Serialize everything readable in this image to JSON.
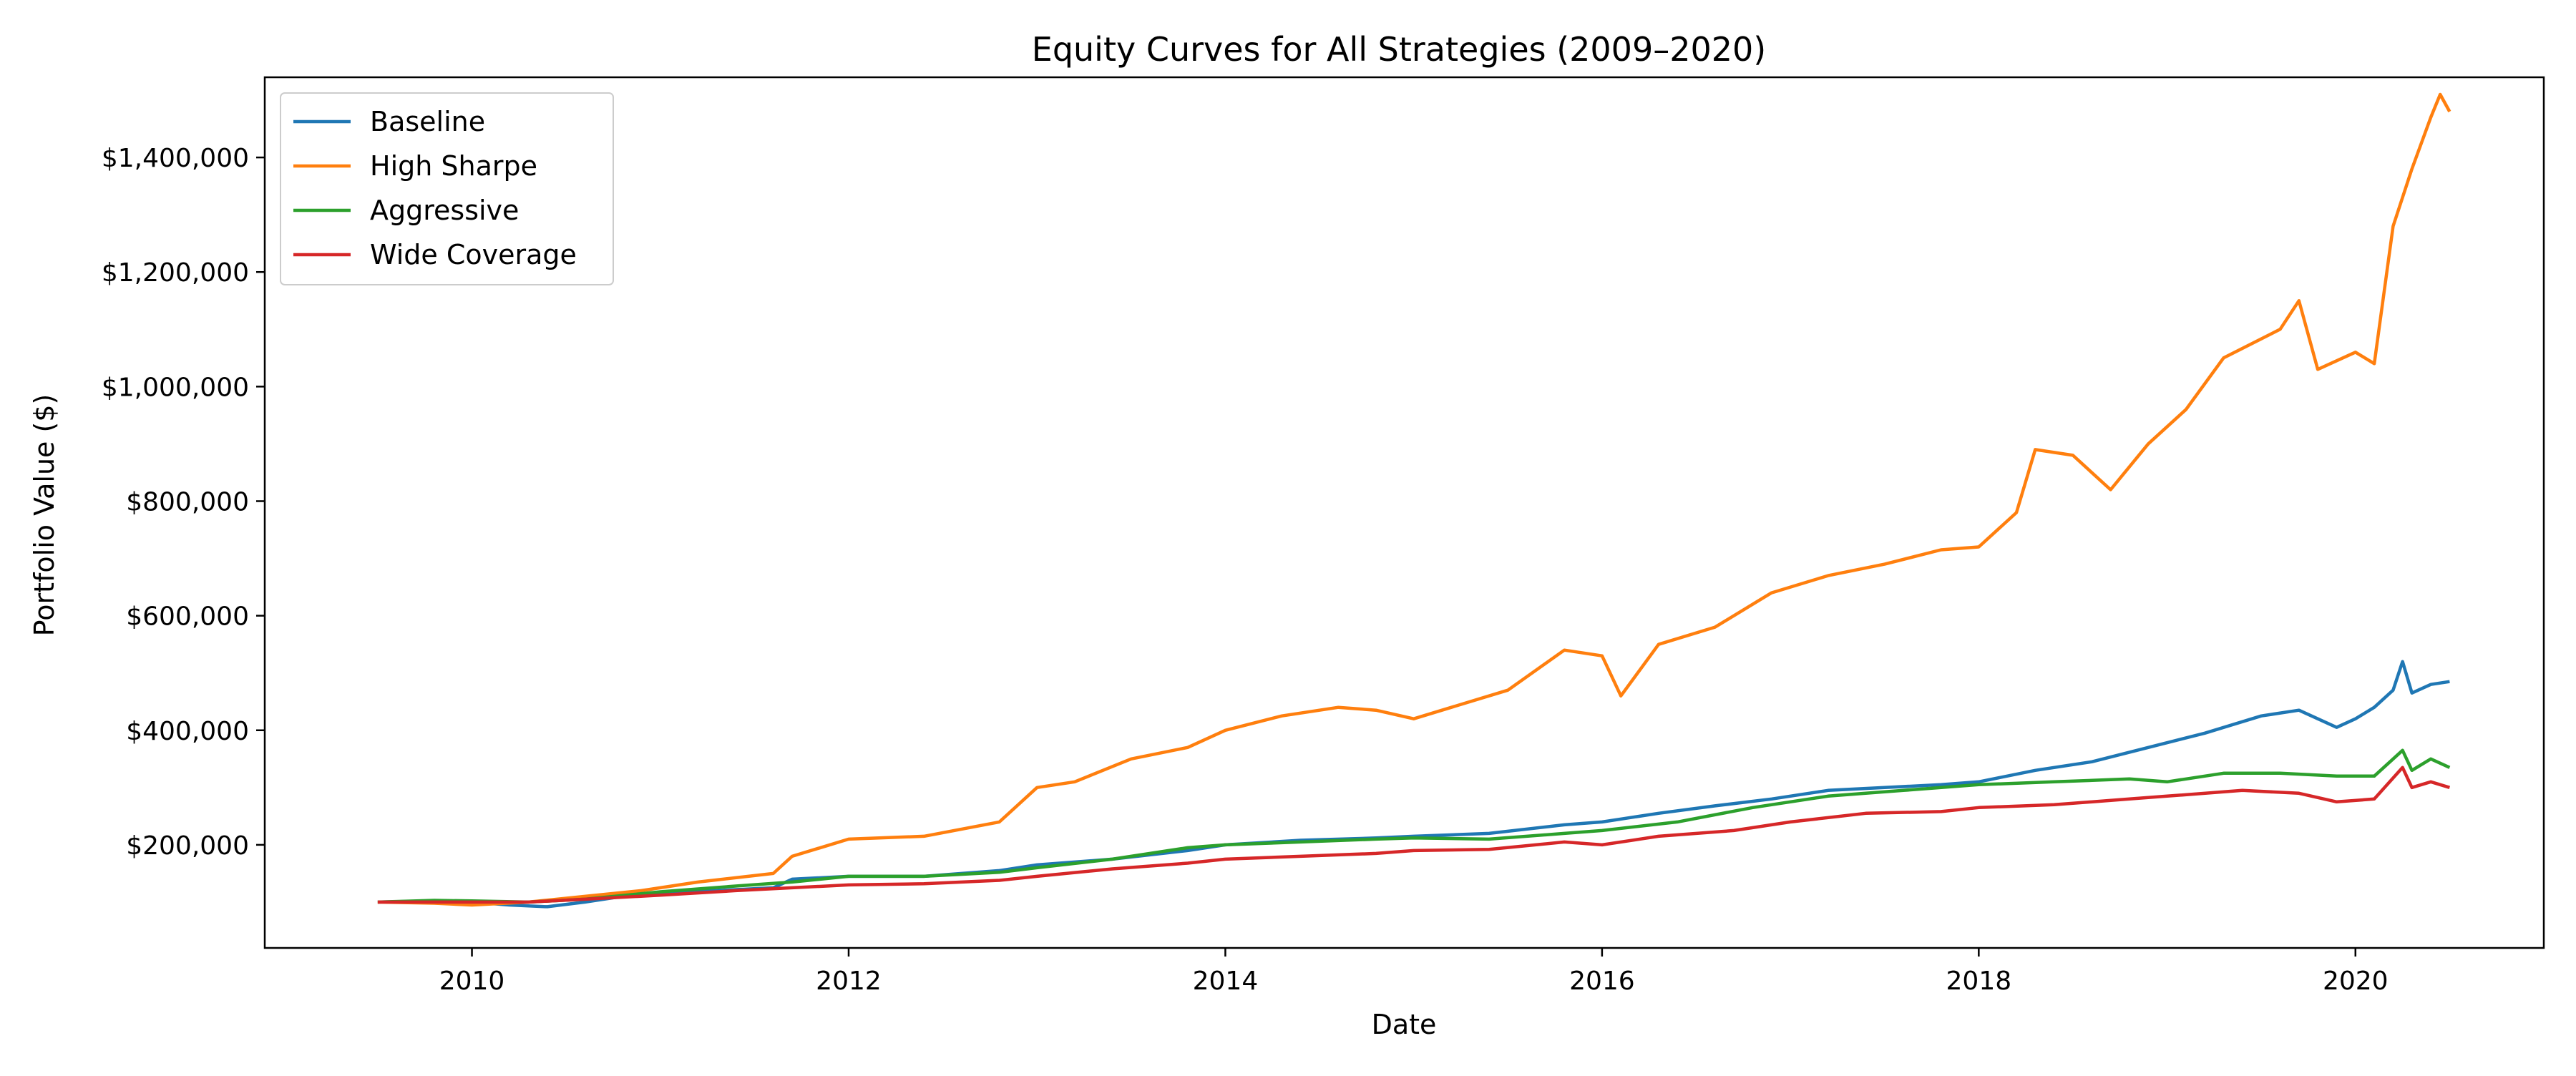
{
  "chart_data": {
    "type": "line",
    "title": "Equity Curves for All Strategies (2009–2020)",
    "xlabel": "Date",
    "ylabel": "Portfolio Value ($)",
    "xlim": [
      2008.9,
      2021.0
    ],
    "ylim": [
      20000,
      1540000
    ],
    "x_ticks": [
      2010,
      2012,
      2014,
      2016,
      2018,
      2020
    ],
    "x_tick_labels": [
      "2010",
      "2012",
      "2014",
      "2016",
      "2018",
      "2020"
    ],
    "y_ticks": [
      200000,
      400000,
      600000,
      800000,
      1000000,
      1200000,
      1400000
    ],
    "y_tick_labels": [
      "$200,000",
      "$400,000",
      "$600,000",
      "$800,000",
      "$1,000,000",
      "$1,200,000",
      "$1,400,000"
    ],
    "grid": false,
    "legend_position": "top-left",
    "series": [
      {
        "name": "Baseline",
        "color": "#1f77b4",
        "points": [
          [
            2009.5,
            100000
          ],
          [
            2009.8,
            102000
          ],
          [
            2010.0,
            100000
          ],
          [
            2010.2,
            95000
          ],
          [
            2010.4,
            92000
          ],
          [
            2010.6,
            100000
          ],
          [
            2010.8,
            110000
          ],
          [
            2011.0,
            115000
          ],
          [
            2011.3,
            120000
          ],
          [
            2011.6,
            125000
          ],
          [
            2011.7,
            140000
          ],
          [
            2012.0,
            145000
          ],
          [
            2012.4,
            145000
          ],
          [
            2012.8,
            155000
          ],
          [
            2013.0,
            165000
          ],
          [
            2013.4,
            175000
          ],
          [
            2013.8,
            190000
          ],
          [
            2014.0,
            200000
          ],
          [
            2014.4,
            208000
          ],
          [
            2014.8,
            212000
          ],
          [
            2015.0,
            215000
          ],
          [
            2015.4,
            220000
          ],
          [
            2015.8,
            235000
          ],
          [
            2016.0,
            240000
          ],
          [
            2016.3,
            255000
          ],
          [
            2016.6,
            268000
          ],
          [
            2016.9,
            280000
          ],
          [
            2017.2,
            295000
          ],
          [
            2017.5,
            300000
          ],
          [
            2017.8,
            305000
          ],
          [
            2018.0,
            310000
          ],
          [
            2018.3,
            330000
          ],
          [
            2018.6,
            345000
          ],
          [
            2018.9,
            370000
          ],
          [
            2019.2,
            395000
          ],
          [
            2019.5,
            425000
          ],
          [
            2019.7,
            435000
          ],
          [
            2019.9,
            405000
          ],
          [
            2020.0,
            420000
          ],
          [
            2020.1,
            440000
          ],
          [
            2020.2,
            470000
          ],
          [
            2020.25,
            520000
          ],
          [
            2020.3,
            465000
          ],
          [
            2020.4,
            480000
          ],
          [
            2020.5,
            485000
          ]
        ]
      },
      {
        "name": "High Sharpe",
        "color": "#ff7f0e",
        "points": [
          [
            2009.5,
            100000
          ],
          [
            2009.8,
            98000
          ],
          [
            2010.0,
            95000
          ],
          [
            2010.3,
            100000
          ],
          [
            2010.6,
            110000
          ],
          [
            2010.9,
            120000
          ],
          [
            2011.2,
            135000
          ],
          [
            2011.6,
            150000
          ],
          [
            2011.7,
            180000
          ],
          [
            2012.0,
            210000
          ],
          [
            2012.4,
            215000
          ],
          [
            2012.8,
            240000
          ],
          [
            2013.0,
            300000
          ],
          [
            2013.2,
            310000
          ],
          [
            2013.5,
            350000
          ],
          [
            2013.8,
            370000
          ],
          [
            2014.0,
            400000
          ],
          [
            2014.3,
            425000
          ],
          [
            2014.6,
            440000
          ],
          [
            2014.8,
            435000
          ],
          [
            2015.0,
            420000
          ],
          [
            2015.2,
            440000
          ],
          [
            2015.5,
            470000
          ],
          [
            2015.8,
            540000
          ],
          [
            2016.0,
            530000
          ],
          [
            2016.1,
            460000
          ],
          [
            2016.3,
            550000
          ],
          [
            2016.6,
            580000
          ],
          [
            2016.9,
            640000
          ],
          [
            2017.2,
            670000
          ],
          [
            2017.5,
            690000
          ],
          [
            2017.8,
            715000
          ],
          [
            2018.0,
            720000
          ],
          [
            2018.2,
            780000
          ],
          [
            2018.3,
            890000
          ],
          [
            2018.5,
            880000
          ],
          [
            2018.7,
            820000
          ],
          [
            2018.9,
            900000
          ],
          [
            2019.1,
            960000
          ],
          [
            2019.3,
            1050000
          ],
          [
            2019.6,
            1100000
          ],
          [
            2019.7,
            1150000
          ],
          [
            2019.8,
            1030000
          ],
          [
            2020.0,
            1060000
          ],
          [
            2020.1,
            1040000
          ],
          [
            2020.2,
            1280000
          ],
          [
            2020.3,
            1380000
          ],
          [
            2020.4,
            1470000
          ],
          [
            2020.45,
            1510000
          ],
          [
            2020.5,
            1480000
          ]
        ]
      },
      {
        "name": "Aggressive",
        "color": "#2ca02c",
        "points": [
          [
            2009.5,
            100000
          ],
          [
            2009.8,
            103000
          ],
          [
            2010.0,
            102000
          ],
          [
            2010.3,
            100000
          ],
          [
            2010.6,
            105000
          ],
          [
            2011.0,
            118000
          ],
          [
            2011.4,
            128000
          ],
          [
            2011.7,
            135000
          ],
          [
            2012.0,
            145000
          ],
          [
            2012.4,
            145000
          ],
          [
            2012.8,
            152000
          ],
          [
            2013.0,
            160000
          ],
          [
            2013.4,
            175000
          ],
          [
            2013.8,
            195000
          ],
          [
            2014.0,
            200000
          ],
          [
            2014.4,
            205000
          ],
          [
            2014.8,
            210000
          ],
          [
            2015.0,
            212000
          ],
          [
            2015.4,
            210000
          ],
          [
            2015.8,
            220000
          ],
          [
            2016.0,
            225000
          ],
          [
            2016.4,
            240000
          ],
          [
            2016.8,
            265000
          ],
          [
            2017.2,
            285000
          ],
          [
            2017.6,
            295000
          ],
          [
            2018.0,
            305000
          ],
          [
            2018.4,
            310000
          ],
          [
            2018.8,
            315000
          ],
          [
            2019.0,
            310000
          ],
          [
            2019.3,
            325000
          ],
          [
            2019.6,
            325000
          ],
          [
            2019.9,
            320000
          ],
          [
            2020.1,
            320000
          ],
          [
            2020.25,
            365000
          ],
          [
            2020.3,
            330000
          ],
          [
            2020.4,
            350000
          ],
          [
            2020.5,
            335000
          ]
        ]
      },
      {
        "name": "Wide Coverage",
        "color": "#d62728",
        "points": [
          [
            2009.5,
            100000
          ],
          [
            2009.8,
            100000
          ],
          [
            2010.0,
            100000
          ],
          [
            2010.3,
            100000
          ],
          [
            2010.6,
            105000
          ],
          [
            2011.0,
            112000
          ],
          [
            2011.4,
            120000
          ],
          [
            2011.7,
            125000
          ],
          [
            2012.0,
            130000
          ],
          [
            2012.4,
            132000
          ],
          [
            2012.8,
            138000
          ],
          [
            2013.0,
            145000
          ],
          [
            2013.4,
            158000
          ],
          [
            2013.8,
            168000
          ],
          [
            2014.0,
            175000
          ],
          [
            2014.4,
            180000
          ],
          [
            2014.8,
            185000
          ],
          [
            2015.0,
            190000
          ],
          [
            2015.4,
            192000
          ],
          [
            2015.8,
            205000
          ],
          [
            2016.0,
            200000
          ],
          [
            2016.3,
            215000
          ],
          [
            2016.7,
            225000
          ],
          [
            2017.0,
            240000
          ],
          [
            2017.4,
            255000
          ],
          [
            2017.8,
            258000
          ],
          [
            2018.0,
            265000
          ],
          [
            2018.4,
            270000
          ],
          [
            2018.8,
            280000
          ],
          [
            2019.0,
            285000
          ],
          [
            2019.4,
            295000
          ],
          [
            2019.7,
            290000
          ],
          [
            2019.9,
            275000
          ],
          [
            2020.1,
            280000
          ],
          [
            2020.25,
            335000
          ],
          [
            2020.3,
            300000
          ],
          [
            2020.4,
            310000
          ],
          [
            2020.5,
            300000
          ]
        ]
      }
    ]
  }
}
